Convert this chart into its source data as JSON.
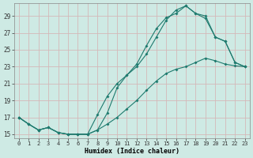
{
  "xlabel": "Humidex (Indice chaleur)",
  "bg_color": "#ceeae4",
  "grid_color": "#d4b8b8",
  "line_color": "#1e7a6e",
  "xlim": [
    -0.5,
    23.5
  ],
  "ylim": [
    14.5,
    30.5
  ],
  "xticks": [
    0,
    1,
    2,
    3,
    4,
    5,
    6,
    7,
    8,
    9,
    10,
    11,
    12,
    13,
    14,
    15,
    16,
    17,
    18,
    19,
    20,
    21,
    22,
    23
  ],
  "yticks": [
    15,
    17,
    19,
    21,
    23,
    25,
    27,
    29
  ],
  "line1_x": [
    0,
    1,
    2,
    3,
    4,
    5,
    6,
    7,
    8,
    9,
    10,
    11,
    12,
    13,
    14,
    15,
    16,
    17,
    18,
    19,
    20,
    21,
    22,
    23
  ],
  "line1_y": [
    17.0,
    16.2,
    15.5,
    15.8,
    15.2,
    15.0,
    15.0,
    15.0,
    15.5,
    17.5,
    20.5,
    22.0,
    23.0,
    24.5,
    26.5,
    28.5,
    29.7,
    30.2,
    29.3,
    28.7,
    26.5,
    26.0,
    23.5,
    23.0
  ],
  "line2_x": [
    0,
    1,
    2,
    3,
    4,
    5,
    6,
    7,
    8,
    9,
    10,
    11,
    12,
    13,
    14,
    15,
    16,
    17,
    18,
    19,
    20,
    21,
    22,
    23
  ],
  "line2_y": [
    17.0,
    16.2,
    15.5,
    15.8,
    15.2,
    15.0,
    15.0,
    15.0,
    17.3,
    19.5,
    21.0,
    22.0,
    23.3,
    25.5,
    27.5,
    28.8,
    29.3,
    30.2,
    29.3,
    29.0,
    26.5,
    26.0,
    23.5,
    23.0
  ],
  "line3_x": [
    0,
    1,
    2,
    3,
    4,
    5,
    6,
    7,
    8,
    9,
    10,
    11,
    12,
    13,
    14,
    15,
    16,
    17,
    18,
    19,
    20,
    21,
    22,
    23
  ],
  "line3_y": [
    17.0,
    16.2,
    15.5,
    15.8,
    15.2,
    15.0,
    15.0,
    15.0,
    15.5,
    16.2,
    17.0,
    18.0,
    19.0,
    20.2,
    21.3,
    22.2,
    22.7,
    23.0,
    23.5,
    24.0,
    23.7,
    23.3,
    23.1,
    23.0
  ]
}
